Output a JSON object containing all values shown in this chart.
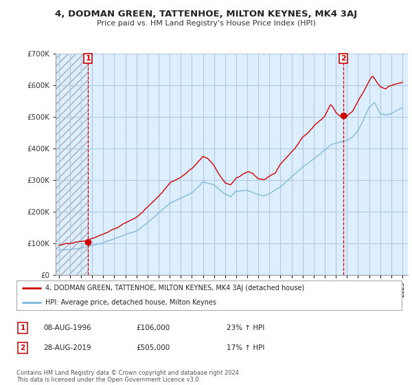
{
  "title": "4, DODMAN GREEN, TATTENHOE, MILTON KEYNES, MK4 3AJ",
  "subtitle": "Price paid vs. HM Land Registry's House Price Index (HPI)",
  "legend_line1": "4, DODMAN GREEN, TATTENHOE, MILTON KEYNES, MK4 3AJ (detached house)",
  "legend_line2": "HPI: Average price, detached house, Milton Keynes",
  "sale1_label": "1",
  "sale1_date": "08-AUG-1996",
  "sale1_price": "£106,000",
  "sale1_hpi": "23% ↑ HPI",
  "sale2_label": "2",
  "sale2_date": "28-AUG-2019",
  "sale2_price": "£505,000",
  "sale2_hpi": "17% ↑ HPI",
  "footnote": "Contains HM Land Registry data © Crown copyright and database right 2024.\nThis data is licensed under the Open Government Licence v3.0.",
  "sale1_year": 1996.62,
  "sale1_value": 106000,
  "sale2_year": 2019.65,
  "sale2_value": 505000,
  "hpi_color": "#7ab4d8",
  "price_color": "#cc0000",
  "background_color": "#ffffff",
  "plot_bg_color": "#ddeeff",
  "grid_color": "#b0c8e0",
  "ylabel_color": "#333333",
  "ylim": [
    0,
    700000
  ],
  "xlim_start": 1993.7,
  "xlim_end": 2025.5
}
